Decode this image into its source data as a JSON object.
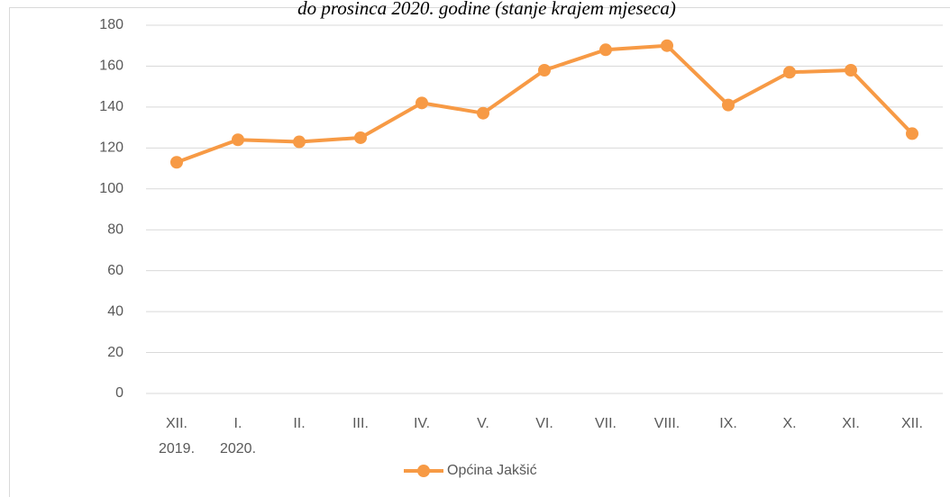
{
  "chart_data": {
    "type": "line",
    "title": "do prosinca 2020. godine (stanje krajem mjeseca)",
    "categories": [
      [
        "XII.",
        "2019."
      ],
      [
        "I.",
        "2020."
      ],
      [
        "II."
      ],
      [
        "III."
      ],
      [
        "IV."
      ],
      [
        "V."
      ],
      [
        "VI."
      ],
      [
        "VII."
      ],
      [
        "VIII."
      ],
      [
        "IX."
      ],
      [
        "X."
      ],
      [
        "XI."
      ],
      [
        "XII."
      ]
    ],
    "series": [
      {
        "name": "Općina Jakšić",
        "color": "#f79a45",
        "values": [
          113,
          124,
          123,
          125,
          142,
          137,
          158,
          168,
          170,
          141,
          157,
          158,
          127
        ]
      }
    ],
    "ylim": [
      0,
      180
    ],
    "yticks": [
      0,
      20,
      40,
      60,
      80,
      100,
      120,
      140,
      160,
      180
    ],
    "grid": true,
    "legend": "bottom"
  }
}
